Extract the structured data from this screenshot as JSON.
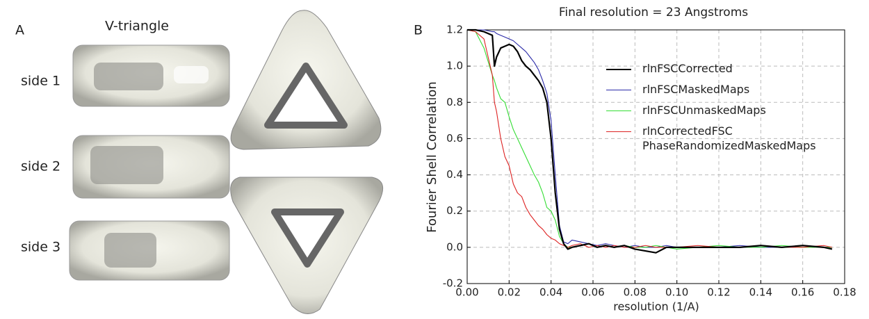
{
  "panel_a": {
    "label": "A",
    "title": "V-triangle",
    "rows": [
      "side 1",
      "side 2",
      "side 3"
    ]
  },
  "chart_data": {
    "type": "line",
    "panel_label": "B",
    "title": "Final resolution = 23 Angstroms",
    "x_label": "resolution (1/A)",
    "y_label": "Fourier Shell Correlation",
    "x": [
      0,
      0.004,
      0.008,
      0.012,
      0.013,
      0.014,
      0.016,
      0.018,
      0.02,
      0.022,
      0.024,
      0.026,
      0.028,
      0.03,
      0.032,
      0.034,
      0.036,
      0.038,
      0.04,
      0.042,
      0.044,
      0.046,
      0.048,
      0.05,
      0.054,
      0.058,
      0.062,
      0.066,
      0.07,
      0.075,
      0.08,
      0.085,
      0.09,
      0.095,
      0.1,
      0.11,
      0.12,
      0.13,
      0.14,
      0.15,
      0.16,
      0.17,
      0.174
    ],
    "series": [
      {
        "name": "rlnFSCCorrected",
        "color": "#000000",
        "width": 2.2,
        "values": [
          1.2,
          1.2,
          1.19,
          1.17,
          1.0,
          1.05,
          1.1,
          1.11,
          1.12,
          1.11,
          1.08,
          1.03,
          1.0,
          0.98,
          0.95,
          0.92,
          0.88,
          0.8,
          0.6,
          0.3,
          0.1,
          0.02,
          -0.01,
          0.0,
          0.01,
          0.02,
          0.0,
          0.01,
          0.0,
          0.01,
          -0.01,
          -0.02,
          -0.03,
          0.0,
          0.0,
          0.0,
          0.0,
          0.0,
          0.01,
          0.0,
          0.01,
          0.0,
          -0.01
        ]
      },
      {
        "name": "rlnFSCMaskedMaps",
        "color": "#2a2aa8",
        "width": 1.1,
        "values": [
          1.2,
          1.2,
          1.2,
          1.19,
          1.19,
          1.18,
          1.17,
          1.16,
          1.15,
          1.14,
          1.12,
          1.1,
          1.08,
          1.05,
          1.02,
          0.98,
          0.92,
          0.85,
          0.7,
          0.4,
          0.12,
          0.03,
          0.02,
          0.04,
          0.03,
          0.02,
          0.01,
          0.02,
          0.01,
          0.0,
          0.01,
          0.0,
          0.0,
          0.01,
          0.0,
          0.0,
          0.0,
          0.01,
          0.0,
          0.0,
          0.01,
          0.0,
          0.0
        ]
      },
      {
        "name": "rlnFSCUnmaskedMaps",
        "color": "#33dd33",
        "width": 1.1,
        "values": [
          1.2,
          1.19,
          1.1,
          0.95,
          0.92,
          0.88,
          0.82,
          0.8,
          0.72,
          0.65,
          0.6,
          0.55,
          0.5,
          0.45,
          0.4,
          0.36,
          0.3,
          0.22,
          0.2,
          0.15,
          0.06,
          0.02,
          0.0,
          0.0,
          0.01,
          0.02,
          0.0,
          0.01,
          0.0,
          0.01,
          0.0,
          0.0,
          0.01,
          0.0,
          -0.01,
          0.0,
          0.01,
          0.0,
          0.0,
          0.01,
          0.0,
          0.0,
          0.0
        ]
      },
      {
        "name": "rlnCorrectedFSC PhaseRandomizedMaskedMaps",
        "color": "#dd2222",
        "width": 1.1,
        "values": [
          1.2,
          1.19,
          1.15,
          0.95,
          0.8,
          0.75,
          0.6,
          0.5,
          0.45,
          0.35,
          0.3,
          0.28,
          0.22,
          0.18,
          0.15,
          0.12,
          0.1,
          0.07,
          0.05,
          0.04,
          0.02,
          0.01,
          0.0,
          0.01,
          0.02,
          0.0,
          0.01,
          0.0,
          0.01,
          0.0,
          0.0,
          0.01,
          0.0,
          0.0,
          0.0,
          0.01,
          0.0,
          0.0,
          0.01,
          0.0,
          0.0,
          0.01,
          0.0
        ]
      }
    ],
    "xlim": [
      0,
      0.18
    ],
    "xticks": [
      {
        "value": 0,
        "label": "0.00"
      },
      {
        "value": 0.02,
        "label": "0.02"
      },
      {
        "value": 0.04,
        "label": "0.04"
      },
      {
        "value": 0.06,
        "label": "0.06"
      },
      {
        "value": 0.08,
        "label": "0.08"
      },
      {
        "value": 0.1,
        "label": "0.10"
      },
      {
        "value": 0.12,
        "label": "0.12"
      },
      {
        "value": 0.14,
        "label": "0.14"
      },
      {
        "value": 0.16,
        "label": "0.16"
      },
      {
        "value": 0.18,
        "label": "0.18"
      }
    ],
    "ylim": [
      -0.2,
      1.2
    ],
    "yticks": [
      -0.2,
      {
        "value": 0,
        "label": "0.0"
      },
      0.2,
      0.4,
      0.6,
      0.8,
      {
        "value": 1,
        "label": "1.0"
      },
      1.2
    ],
    "grid": true,
    "legend": "upper right"
  }
}
